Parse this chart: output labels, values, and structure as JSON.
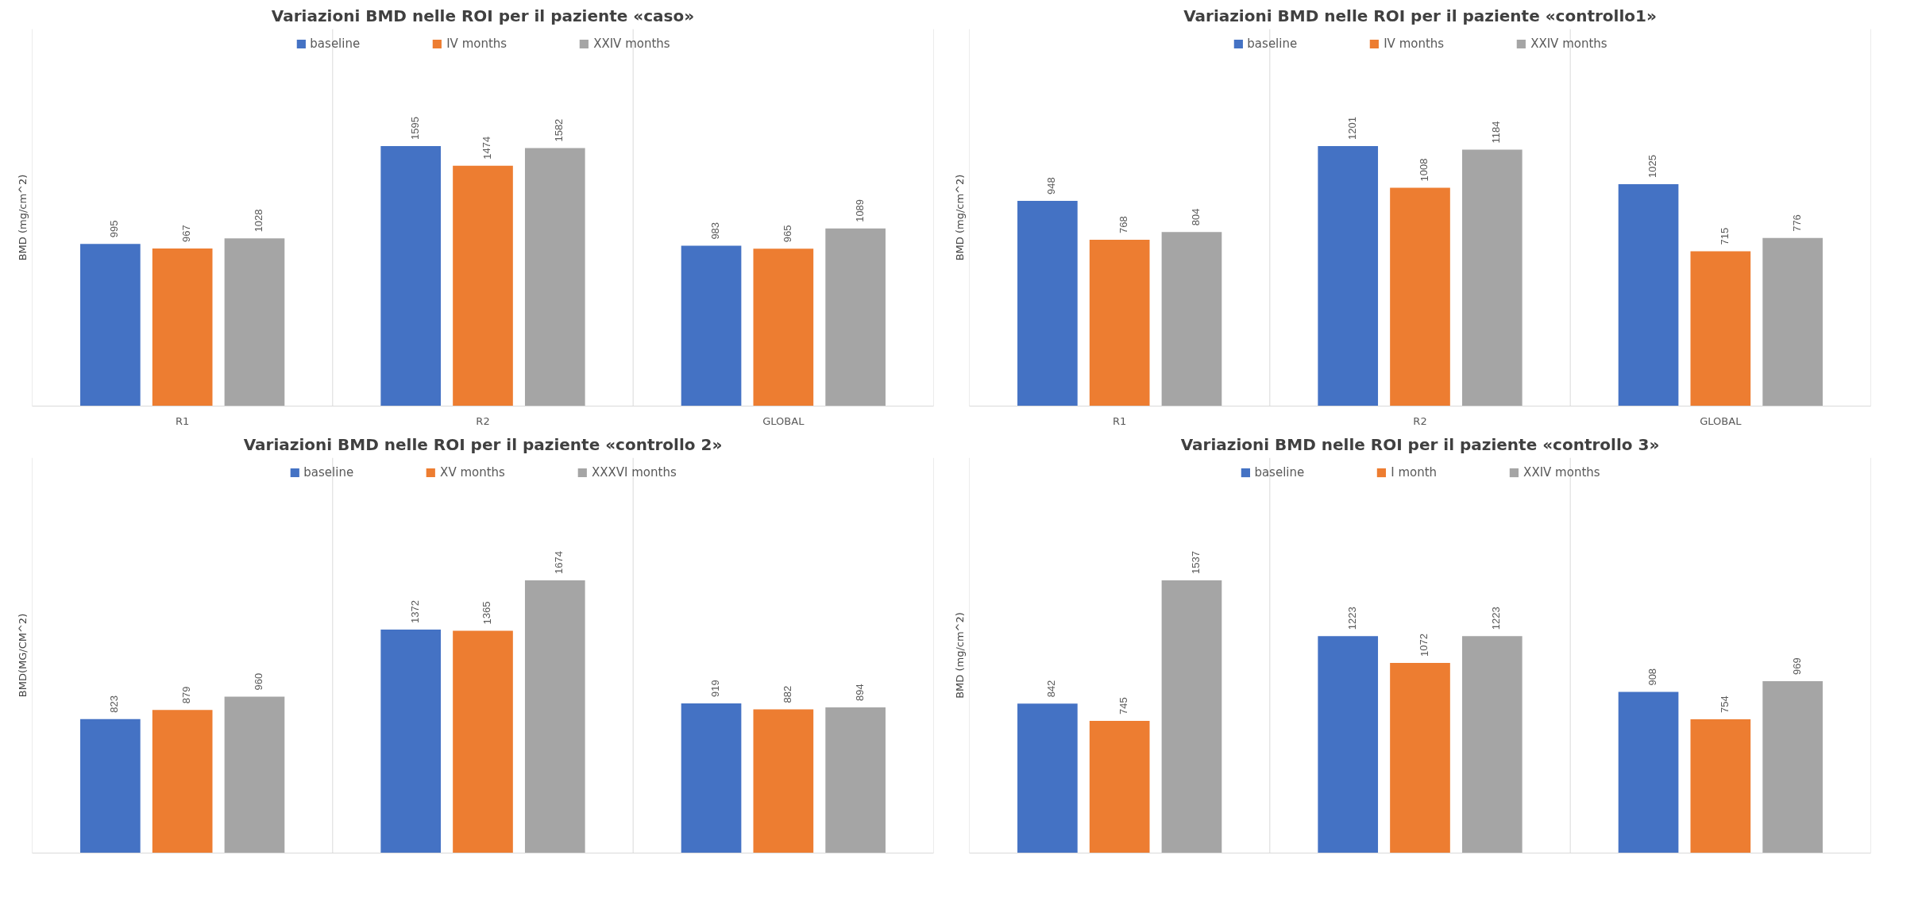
{
  "chart_data": [
    {
      "type": "bar",
      "title": "Variazioni BMD nelle ROI per il paziente «caso»",
      "ylabel": "BMD (mg/cm^2)",
      "categories": [
        "R1",
        "R2",
        "GLOBAL"
      ],
      "series": [
        {
          "name": "baseline",
          "color": "#4472c4",
          "values": [
            995,
            1595,
            983
          ]
        },
        {
          "name": "IV months",
          "color": "#ed7d31",
          "values": [
            967,
            1474,
            965
          ]
        },
        {
          "name": "XXIV months",
          "color": "#a5a5a5",
          "values": [
            1028,
            1582,
            1089
          ]
        }
      ],
      "data_labels": true,
      "legend": "top",
      "grid": "x"
    },
    {
      "type": "bar",
      "title": "Variazioni BMD nelle ROI per il paziente «controllo1»",
      "ylabel": "BMD (mg/cm^2)",
      "categories": [
        "R1",
        "R2",
        "GLOBAL"
      ],
      "series": [
        {
          "name": "baseline",
          "color": "#4472c4",
          "values": [
            948,
            1201,
            1025
          ]
        },
        {
          "name": "IV months",
          "color": "#ed7d31",
          "values": [
            768,
            1008,
            715
          ]
        },
        {
          "name": "XXIV months",
          "color": "#a5a5a5",
          "values": [
            804,
            1184,
            776
          ]
        }
      ],
      "data_labels": true,
      "legend": "top",
      "grid": "x"
    },
    {
      "type": "bar",
      "title": "Variazioni BMD nelle ROI per il paziente «controllo 2»",
      "ylabel": "BMD(MG/CM^2)",
      "categories": [
        null,
        null,
        null
      ],
      "series": [
        {
          "name": "baseline",
          "color": "#4472c4",
          "values": [
            823,
            1372,
            919
          ]
        },
        {
          "name": "XV months",
          "color": "#ed7d31",
          "values": [
            879,
            1365,
            882
          ]
        },
        {
          "name": "XXXVI months",
          "color": "#a5a5a5",
          "values": [
            960,
            1674,
            894
          ]
        }
      ],
      "data_labels": true,
      "legend": "top",
      "grid": "x"
    },
    {
      "type": "bar",
      "title": "Variazioni BMD nelle ROI per il paziente «controllo 3»",
      "ylabel": "BMD (mg/cm^2)",
      "categories": [
        null,
        null,
        null
      ],
      "series": [
        {
          "name": "baseline",
          "color": "#4472c4",
          "values": [
            842,
            1223,
            908
          ]
        },
        {
          "name": "I month",
          "color": "#ed7d31",
          "values": [
            745,
            1072,
            754
          ]
        },
        {
          "name": "XXIV months",
          "color": "#a5a5a5",
          "values": [
            1537,
            1223,
            969
          ]
        }
      ],
      "data_labels": true,
      "legend": "top",
      "grid": "x"
    }
  ]
}
